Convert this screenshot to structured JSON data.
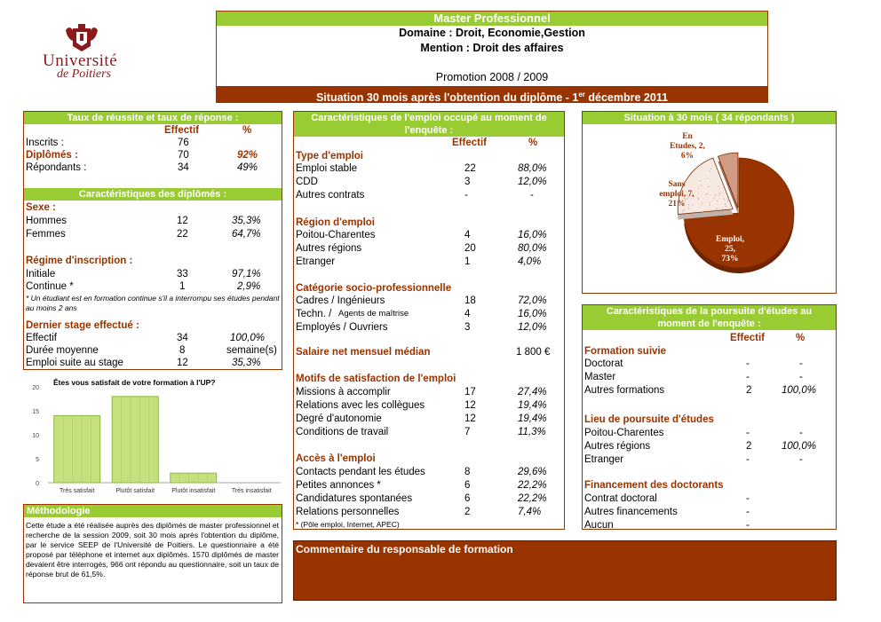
{
  "logo": {
    "top": "UNIVERSITÉ",
    "name": "Université",
    "sub": "de Poitiers"
  },
  "header": {
    "title": "Master Professionnel",
    "domaine": "Domaine : Droit, Economie,Gestion",
    "mention": "Mention : Droit des affaires",
    "promotion": "Promotion 2008 / 2009",
    "situation_main": "Situation 30 mois après l'obtention du diplôme - 1",
    "situation_sup": "er",
    "situation_end": " décembre 2011"
  },
  "taux": {
    "title": "Taux de réussite et taux de réponse :",
    "col_effectif": "Effectif",
    "col_pct": "%",
    "rows": [
      {
        "label": "Inscrits :",
        "eff": "76",
        "pct": ""
      },
      {
        "label": "Diplômés :",
        "eff": "70",
        "pct": "92%"
      },
      {
        "label": "Répondants :",
        "eff": "34",
        "pct": "49%"
      }
    ]
  },
  "diplomes": {
    "title": "Caractéristiques des diplômés :",
    "sexe_title": "Sexe :",
    "sexe": [
      {
        "label": "Hommes",
        "eff": "12",
        "pct": "35,3%"
      },
      {
        "label": "Femmes",
        "eff": "22",
        "pct": "64,7%"
      }
    ],
    "regime_title": "Régime d'inscription :",
    "regime": [
      {
        "label": "Initiale",
        "eff": "33",
        "pct": "97,1%"
      },
      {
        "label": "Continue *",
        "eff": "1",
        "pct": "2,9%"
      }
    ],
    "note": "* Un étudiant est en formation continue s'il a interrompu ses études pendant au moins 2 ans",
    "stage_title": "Dernier stage effectué :",
    "stage": [
      {
        "label": "Effectif",
        "eff": "34",
        "pct": "100,0%"
      },
      {
        "label": "Durée moyenne",
        "eff": "8",
        "pct": "semaine(s)"
      },
      {
        "label": "Emploi suite au stage",
        "eff": "12",
        "pct": "35,3%"
      }
    ]
  },
  "chart_data": {
    "type": "bar",
    "title": "Êtes vous satisfait de votre formation à l'UP?",
    "categories": [
      "Très satisfait",
      "Plutôt satisfait",
      "Plutôt insatisfait",
      "Très insatisfait"
    ],
    "values": [
      14,
      18,
      2,
      0
    ],
    "ylim": [
      0,
      20
    ],
    "yticks": [
      "0",
      "5",
      "10",
      "15",
      "20"
    ],
    "bar_color": "#c5e07e",
    "grid": false
  },
  "methodo": {
    "title": "Méthodologie",
    "text": "Cette étude a été réalisée auprès des diplômés de master professionnel et recherche de la session 2009, soit 30 mois après l'obtention du diplôme, par le service SEEP de l'Université de Poitiers. Le questionnaire a été proposé par téléphone et internet aux diplômés. 1570 diplômés de master devaient être interrogés, 966 ont répondu au questionnaire, soit un taux de réponse brut de 61,5%."
  },
  "emploi": {
    "title": "Caractéristiques de l'emploi occupé au moment de l'enquête :",
    "col_effectif": "Effectif",
    "col_pct": "%",
    "type_title": "Type d'emploi",
    "type": [
      {
        "label": "Emploi stable",
        "eff": "22",
        "pct": "88,0%"
      },
      {
        "label": "CDD",
        "eff": "3",
        "pct": "12,0%"
      },
      {
        "label": "Autres contrats",
        "eff": "-",
        "pct": "-"
      }
    ],
    "region_title": "Région d'emploi",
    "region": [
      {
        "label": "Poitou-Charentes",
        "eff": "4",
        "pct": "16,0%"
      },
      {
        "label": "Autres régions",
        "eff": "20",
        "pct": "80,0%"
      },
      {
        "label": "Etranger",
        "eff": "1",
        "pct": "4,0%"
      }
    ],
    "csp_title": "Catégorie socio-professionnelle",
    "csp": [
      {
        "label": "Cadres / Ingénieurs",
        "eff": "18",
        "pct": "72,0%"
      },
      {
        "label": "Techn. / ",
        "label_small": "Agents de maîtrise",
        "eff": "4",
        "pct": "16,0%"
      },
      {
        "label": "Employés / Ouvriers",
        "eff": "3",
        "pct": "12,0%"
      }
    ],
    "salaire_label": "Salaire net mensuel médian",
    "salaire_value": "1 800 €",
    "motifs_title": "Motifs de satisfaction de l'emploi",
    "motifs": [
      {
        "label": "Missions à accomplir",
        "eff": "17",
        "pct": "27,4%"
      },
      {
        "label": "Relations avec les collègues",
        "eff": "12",
        "pct": "19,4%"
      },
      {
        "label": "Degré d'autonomie",
        "eff": "12",
        "pct": "19,4%"
      },
      {
        "label": "Conditions de travail",
        "eff": "7",
        "pct": "11,3%"
      }
    ],
    "acces_title": "Accès à l'emploi",
    "acces": [
      {
        "label": "Contacts pendant les études",
        "eff": "8",
        "pct": "29,6%"
      },
      {
        "label": "Petites annonces *",
        "eff": "6",
        "pct": "22,2%"
      },
      {
        "label": "Candidatures spontanées",
        "eff": "6",
        "pct": "22,2%"
      },
      {
        "label": "Relations personnelles",
        "eff": "2",
        "pct": "7,4%"
      }
    ],
    "acces_note": "* (Pôle emploi, Internet, APEC)"
  },
  "situation": {
    "title": "Situation à 30 mois ( 34 répondants )",
    "slices": [
      {
        "name": "Emploi",
        "value": 25,
        "pct": "73%",
        "color": "#993300",
        "label1": "Emploi,",
        "label2": "25,",
        "label3": "73%"
      },
      {
        "name": "Sans emploi",
        "value": 7,
        "pct": "21%",
        "color": "#f6e9e2",
        "label1": "Sans",
        "label2": "emploi, 7,",
        "label3": "21%"
      },
      {
        "name": "En Etudes",
        "value": 2,
        "pct": "6%",
        "color": "#d29b86",
        "label1": "En",
        "label2": "Etudes, 2,",
        "label3": "6%"
      }
    ]
  },
  "poursuite": {
    "title": "Caractéristiques de la poursuite d'études au moment de l'enquête :",
    "col_effectif": "Effectif",
    "col_pct": "%",
    "formation_title": "Formation suivie",
    "formation": [
      {
        "label": "Doctorat",
        "eff": "-",
        "pct": "-"
      },
      {
        "label": "Master",
        "eff": "-",
        "pct": "-"
      },
      {
        "label": "Autres formations",
        "eff": "2",
        "pct": "100,0%"
      }
    ],
    "lieu_title": "Lieu de poursuite d'études",
    "lieu": [
      {
        "label": "Poitou-Charentes",
        "eff": "-",
        "pct": "-"
      },
      {
        "label": "Autres régions",
        "eff": "2",
        "pct": "100,0%"
      },
      {
        "label": "Etranger",
        "eff": "-",
        "pct": "-"
      }
    ],
    "fin_title": "Financement des doctorants",
    "fin": [
      {
        "label": "Contrat doctoral",
        "eff": "-"
      },
      {
        "label": "Autres financements",
        "eff": "-"
      },
      {
        "label": "Aucun",
        "eff": "-"
      }
    ]
  },
  "commentaire": {
    "title": "Commentaire du responsable de formation"
  }
}
